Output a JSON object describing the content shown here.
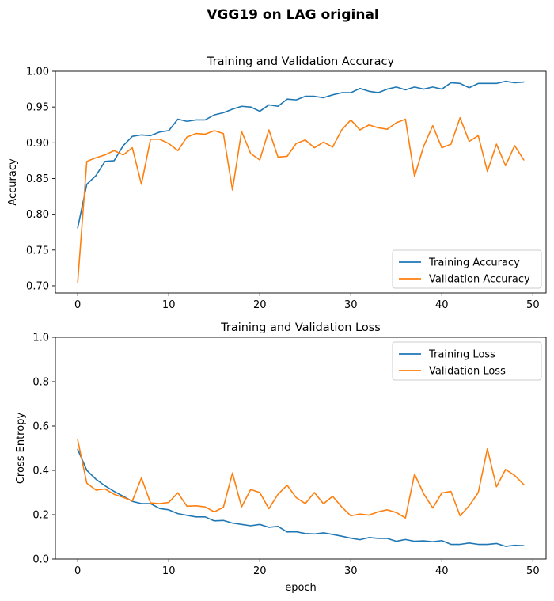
{
  "figure": {
    "suptitle": "VGG19 on LAG original"
  },
  "colors": {
    "train": "#1f77b4",
    "val": "#ff7f0e",
    "axes": "#000000",
    "legend_border": "#cccccc"
  },
  "chart_data": [
    {
      "type": "line",
      "title": "Training and Validation Accuracy",
      "xlabel": "",
      "ylabel": "Accuracy",
      "xlim": [
        -2.45,
        51.45
      ],
      "ylim": [
        0.69,
        1.0
      ],
      "xticks": [
        0,
        10,
        20,
        30,
        40,
        50
      ],
      "yticks": [
        0.7,
        0.75,
        0.8,
        0.85,
        0.9,
        0.95,
        1.0
      ],
      "ytick_labels": [
        "0.70",
        "0.75",
        "0.80",
        "0.85",
        "0.90",
        "0.95",
        "1.00"
      ],
      "grid": false,
      "legend_position": "lower-right",
      "x": [
        0,
        1,
        2,
        3,
        4,
        5,
        6,
        7,
        8,
        9,
        10,
        11,
        12,
        13,
        14,
        15,
        16,
        17,
        18,
        19,
        20,
        21,
        22,
        23,
        24,
        25,
        26,
        27,
        28,
        29,
        30,
        31,
        32,
        33,
        34,
        35,
        36,
        37,
        38,
        39,
        40,
        41,
        42,
        43,
        44,
        45,
        46,
        47,
        48,
        49
      ],
      "series": [
        {
          "name": "Training Accuracy",
          "color": "#1f77b4",
          "values": [
            0.781,
            0.842,
            0.854,
            0.874,
            0.875,
            0.896,
            0.909,
            0.911,
            0.91,
            0.915,
            0.917,
            0.933,
            0.93,
            0.932,
            0.932,
            0.939,
            0.942,
            0.947,
            0.951,
            0.95,
            0.944,
            0.953,
            0.951,
            0.961,
            0.96,
            0.965,
            0.965,
            0.963,
            0.967,
            0.97,
            0.97,
            0.976,
            0.972,
            0.97,
            0.975,
            0.978,
            0.974,
            0.978,
            0.975,
            0.978,
            0.975,
            0.984,
            0.983,
            0.977,
            0.983,
            0.983,
            0.983,
            0.986,
            0.984,
            0.985
          ]
        },
        {
          "name": "Validation Accuracy",
          "color": "#ff7f0e",
          "values": [
            0.705,
            0.874,
            0.879,
            0.883,
            0.889,
            0.883,
            0.893,
            0.842,
            0.905,
            0.905,
            0.899,
            0.889,
            0.908,
            0.913,
            0.912,
            0.917,
            0.913,
            0.834,
            0.916,
            0.885,
            0.876,
            0.918,
            0.88,
            0.881,
            0.899,
            0.904,
            0.893,
            0.901,
            0.894,
            0.918,
            0.932,
            0.918,
            0.925,
            0.921,
            0.919,
            0.928,
            0.933,
            0.853,
            0.895,
            0.924,
            0.893,
            0.898,
            0.935,
            0.902,
            0.91,
            0.86,
            0.898,
            0.868,
            0.896,
            0.876
          ]
        }
      ]
    },
    {
      "type": "line",
      "title": "Training and Validation Loss",
      "xlabel": "epoch",
      "ylabel": "Cross Entropy",
      "xlim": [
        -2.45,
        51.45
      ],
      "ylim": [
        0.0,
        1.0
      ],
      "xticks": [
        0,
        10,
        20,
        30,
        40,
        50
      ],
      "yticks": [
        0.0,
        0.2,
        0.4,
        0.6,
        0.8,
        1.0
      ],
      "ytick_labels": [
        "0.0",
        "0.2",
        "0.4",
        "0.6",
        "0.8",
        "1.0"
      ],
      "grid": false,
      "legend_position": "upper-right",
      "x": [
        0,
        1,
        2,
        3,
        4,
        5,
        6,
        7,
        8,
        9,
        10,
        11,
        12,
        13,
        14,
        15,
        16,
        17,
        18,
        19,
        20,
        21,
        22,
        23,
        24,
        25,
        26,
        27,
        28,
        29,
        30,
        31,
        32,
        33,
        34,
        35,
        36,
        37,
        38,
        39,
        40,
        41,
        42,
        43,
        44,
        45,
        46,
        47,
        48,
        49
      ],
      "series": [
        {
          "name": "Training Loss",
          "color": "#1f77b4",
          "values": [
            0.495,
            0.4,
            0.36,
            0.33,
            0.305,
            0.283,
            0.26,
            0.25,
            0.25,
            0.228,
            0.222,
            0.205,
            0.197,
            0.19,
            0.19,
            0.172,
            0.174,
            0.162,
            0.156,
            0.15,
            0.156,
            0.143,
            0.147,
            0.122,
            0.123,
            0.115,
            0.113,
            0.118,
            0.111,
            0.103,
            0.094,
            0.087,
            0.097,
            0.093,
            0.093,
            0.08,
            0.088,
            0.08,
            0.082,
            0.078,
            0.083,
            0.066,
            0.066,
            0.072,
            0.066,
            0.066,
            0.07,
            0.057,
            0.062,
            0.06
          ]
        },
        {
          "name": "Validation Loss",
          "color": "#ff7f0e",
          "values": [
            0.537,
            0.342,
            0.311,
            0.316,
            0.292,
            0.278,
            0.262,
            0.366,
            0.253,
            0.25,
            0.255,
            0.299,
            0.238,
            0.24,
            0.235,
            0.213,
            0.233,
            0.388,
            0.235,
            0.314,
            0.3,
            0.227,
            0.292,
            0.333,
            0.277,
            0.25,
            0.3,
            0.249,
            0.283,
            0.235,
            0.195,
            0.203,
            0.198,
            0.213,
            0.222,
            0.21,
            0.185,
            0.383,
            0.295,
            0.23,
            0.298,
            0.305,
            0.195,
            0.24,
            0.3,
            0.497,
            0.326,
            0.404,
            0.377,
            0.336
          ]
        }
      ]
    }
  ]
}
